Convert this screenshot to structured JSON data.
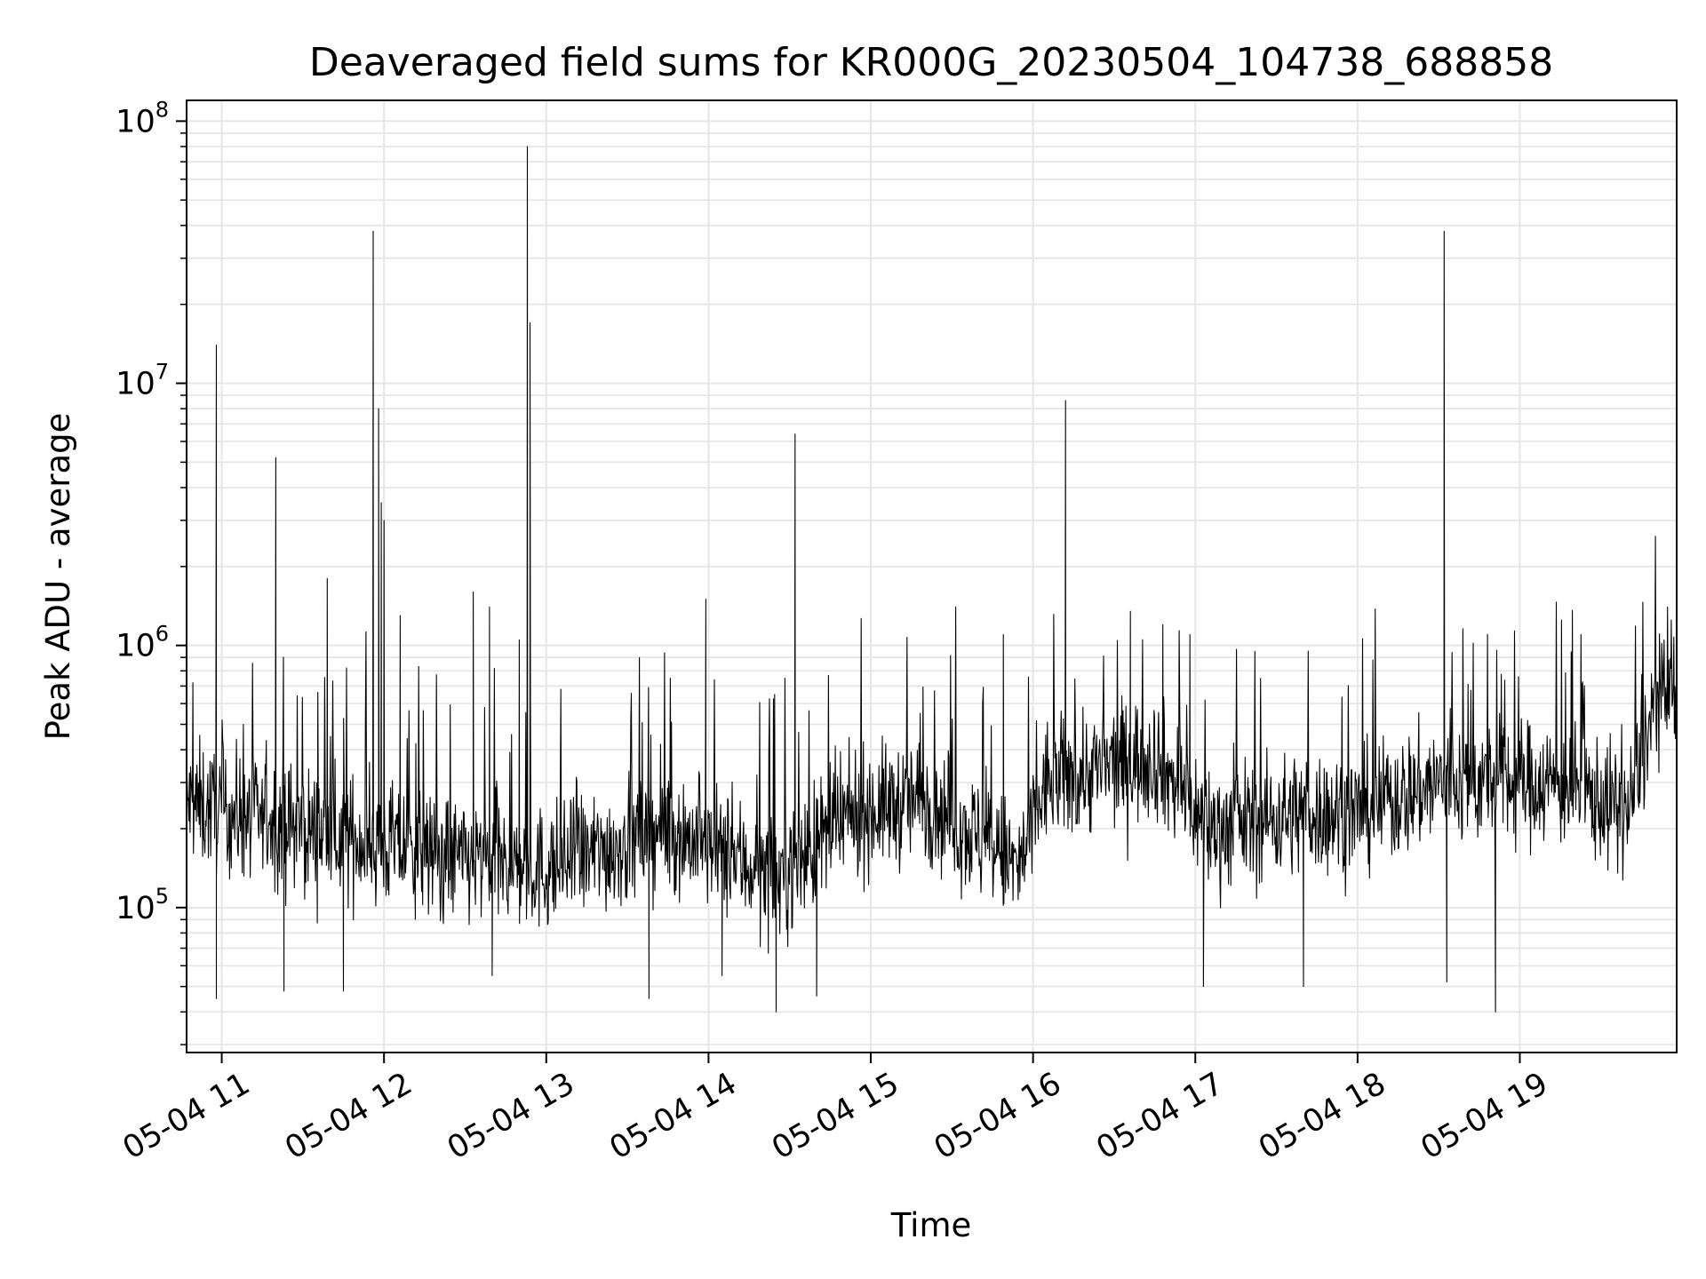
{
  "chart_data": {
    "type": "line",
    "title": "Deaveraged field sums for KR000G_20230504_104738_688858",
    "xlabel": "Time",
    "ylabel": "Peak ADU - average",
    "yscale": "log",
    "ylim": [
      28000,
      120000000
    ],
    "xlim": [
      "2023-05-04 10:47",
      "2023-05-04 19:58"
    ],
    "grid": true,
    "line_color": "#000000",
    "x_ticks": [
      {
        "x": "2023-05-04 11:00",
        "label": "05-04 11"
      },
      {
        "x": "2023-05-04 12:00",
        "label": "05-04 12"
      },
      {
        "x": "2023-05-04 13:00",
        "label": "05-04 13"
      },
      {
        "x": "2023-05-04 14:00",
        "label": "05-04 14"
      },
      {
        "x": "2023-05-04 15:00",
        "label": "05-04 15"
      },
      {
        "x": "2023-05-04 16:00",
        "label": "05-04 16"
      },
      {
        "x": "2023-05-04 17:00",
        "label": "05-04 17"
      },
      {
        "x": "2023-05-04 18:00",
        "label": "05-04 18"
      },
      {
        "x": "2023-05-04 19:00",
        "label": "05-04 19"
      }
    ],
    "y_ticks": [
      {
        "value": 100000,
        "base": "10",
        "exp": "5"
      },
      {
        "value": 1000000,
        "base": "10",
        "exp": "6"
      },
      {
        "value": 10000000,
        "base": "10",
        "exp": "7"
      },
      {
        "value": 100000000,
        "base": "10",
        "exp": "8"
      }
    ],
    "baseline": [
      {
        "x": "2023-05-04 10:47",
        "y": 250000
      },
      {
        "x": "2023-05-04 11:30",
        "y": 200000
      },
      {
        "x": "2023-05-04 12:30",
        "y": 150000
      },
      {
        "x": "2023-05-04 13:00",
        "y": 140000
      },
      {
        "x": "2023-05-04 13:45",
        "y": 200000
      },
      {
        "x": "2023-05-04 14:25",
        "y": 130000
      },
      {
        "x": "2023-05-04 14:55",
        "y": 230000
      },
      {
        "x": "2023-05-04 15:20",
        "y": 260000
      },
      {
        "x": "2023-05-04 15:55",
        "y": 140000
      },
      {
        "x": "2023-05-04 16:05",
        "y": 300000
      },
      {
        "x": "2023-05-04 16:45",
        "y": 380000
      },
      {
        "x": "2023-05-04 17:05",
        "y": 200000
      },
      {
        "x": "2023-05-04 17:40",
        "y": 230000
      },
      {
        "x": "2023-05-04 18:00",
        "y": 230000
      },
      {
        "x": "2023-05-04 18:30",
        "y": 300000
      },
      {
        "x": "2023-05-04 19:15",
        "y": 300000
      },
      {
        "x": "2023-05-04 19:40",
        "y": 230000
      },
      {
        "x": "2023-05-04 19:50",
        "y": 600000
      },
      {
        "x": "2023-05-04 19:58",
        "y": 650000
      }
    ],
    "noise_spread_decades": 0.17,
    "peaks": [
      {
        "x": "2023-05-04 10:58",
        "y": 14000000
      },
      {
        "x": "2023-05-04 11:20",
        "y": 5200000
      },
      {
        "x": "2023-05-04 11:39",
        "y": 1800000
      },
      {
        "x": "2023-05-04 11:56",
        "y": 38000000
      },
      {
        "x": "2023-05-04 11:58",
        "y": 8000000
      },
      {
        "x": "2023-05-04 11:59",
        "y": 3500000
      },
      {
        "x": "2023-05-04 12:00",
        "y": 3000000
      },
      {
        "x": "2023-05-04 12:06",
        "y": 1300000
      },
      {
        "x": "2023-05-04 12:33",
        "y": 1600000
      },
      {
        "x": "2023-05-04 12:39",
        "y": 1400000
      },
      {
        "x": "2023-05-04 12:50",
        "y": 1050000
      },
      {
        "x": "2023-05-04 12:53",
        "y": 80000000
      },
      {
        "x": "2023-05-04 12:54",
        "y": 17000000
      },
      {
        "x": "2023-05-04 13:59",
        "y": 1500000
      },
      {
        "x": "2023-05-04 14:32",
        "y": 6400000
      },
      {
        "x": "2023-05-04 15:49",
        "y": 1100000
      },
      {
        "x": "2023-05-04 16:12",
        "y": 8600000
      },
      {
        "x": "2023-05-04 16:36",
        "y": 1350000
      },
      {
        "x": "2023-05-04 16:48",
        "y": 1200000
      },
      {
        "x": "2023-05-04 16:58",
        "y": 1100000
      },
      {
        "x": "2023-05-04 18:32",
        "y": 38000000
      },
      {
        "x": "2023-05-04 19:56",
        "y": 1250000
      }
    ],
    "dips": [
      {
        "x": "2023-05-04 10:58",
        "y": 45000
      },
      {
        "x": "2023-05-04 11:23",
        "y": 48000
      },
      {
        "x": "2023-05-04 11:45",
        "y": 48000
      },
      {
        "x": "2023-05-04 12:40",
        "y": 55000
      },
      {
        "x": "2023-05-04 13:38",
        "y": 45000
      },
      {
        "x": "2023-05-04 14:05",
        "y": 55000
      },
      {
        "x": "2023-05-04 14:25",
        "y": 40000
      },
      {
        "x": "2023-05-04 14:40",
        "y": 46000
      },
      {
        "x": "2023-05-04 17:03",
        "y": 50000
      },
      {
        "x": "2023-05-04 17:40",
        "y": 50000
      },
      {
        "x": "2023-05-04 18:33",
        "y": 52000
      },
      {
        "x": "2023-05-04 18:51",
        "y": 40000
      }
    ]
  }
}
